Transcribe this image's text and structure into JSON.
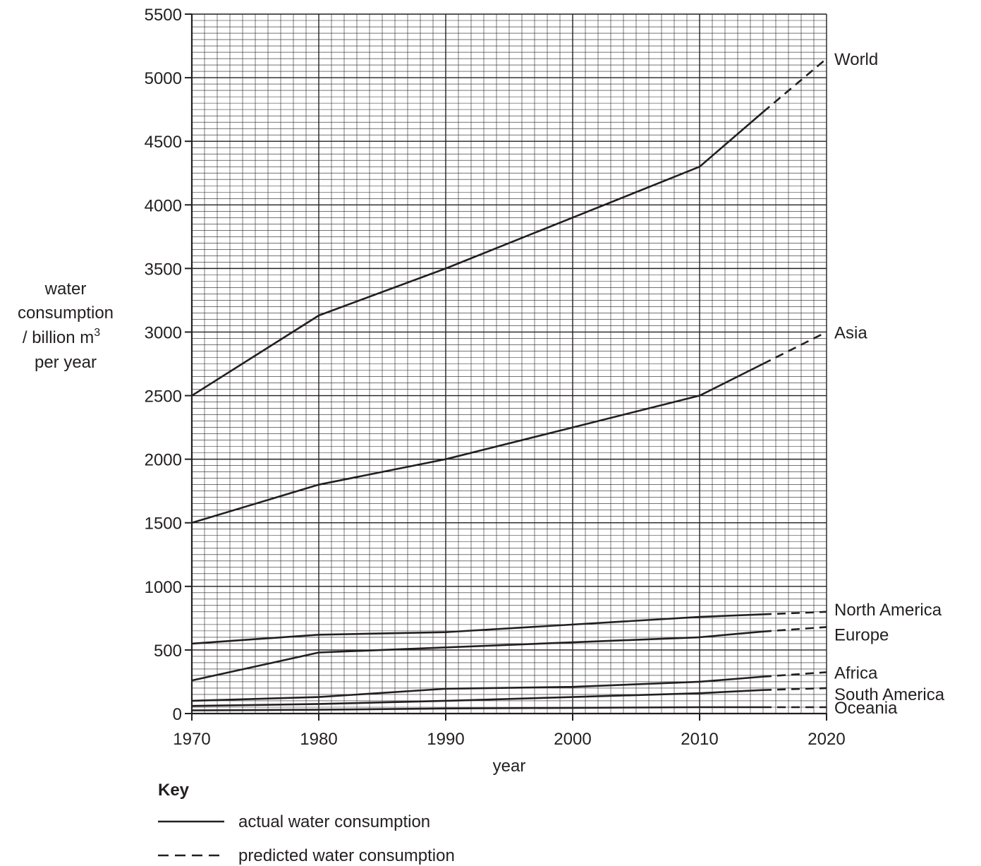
{
  "chart_data": {
    "type": "line",
    "xlabel": "year",
    "ylabel_lines": [
      "water",
      "consumption",
      "/ billion m",
      "per year"
    ],
    "ylabel_superscript": "3",
    "xlim": [
      1970,
      2020
    ],
    "ylim": [
      0,
      5500
    ],
    "x_ticks": [
      1970,
      1980,
      1990,
      2000,
      2010,
      2020
    ],
    "y_ticks": [
      0,
      500,
      1000,
      1500,
      2000,
      2500,
      3000,
      3500,
      4000,
      4500,
      5000,
      5500
    ],
    "grid": true,
    "series": [
      {
        "name": "World",
        "actual": [
          [
            1970,
            2500
          ],
          [
            1980,
            3130
          ],
          [
            1990,
            3500
          ],
          [
            2000,
            3900
          ],
          [
            2010,
            4300
          ],
          [
            2015,
            4730
          ]
        ],
        "predicted": [
          [
            2015,
            4730
          ],
          [
            2020,
            5150
          ]
        ]
      },
      {
        "name": "Asia",
        "actual": [
          [
            1970,
            1500
          ],
          [
            1980,
            1800
          ],
          [
            1990,
            2000
          ],
          [
            2000,
            2250
          ],
          [
            2010,
            2500
          ],
          [
            2015,
            2750
          ]
        ],
        "predicted": [
          [
            2015,
            2750
          ],
          [
            2020,
            3000
          ]
        ]
      },
      {
        "name": "North America",
        "actual": [
          [
            1970,
            550
          ],
          [
            1980,
            620
          ],
          [
            1990,
            640
          ],
          [
            2000,
            700
          ],
          [
            2010,
            760
          ],
          [
            2015,
            780
          ]
        ],
        "predicted": [
          [
            2015,
            780
          ],
          [
            2020,
            800
          ]
        ]
      },
      {
        "name": "Europe",
        "actual": [
          [
            1970,
            260
          ],
          [
            1980,
            480
          ],
          [
            1990,
            520
          ],
          [
            2000,
            560
          ],
          [
            2010,
            600
          ],
          [
            2015,
            645
          ]
        ],
        "predicted": [
          [
            2015,
            645
          ],
          [
            2020,
            680
          ]
        ]
      },
      {
        "name": "Africa",
        "actual": [
          [
            1970,
            100
          ],
          [
            1980,
            130
          ],
          [
            1990,
            195
          ],
          [
            2000,
            210
          ],
          [
            2010,
            250
          ],
          [
            2015,
            290
          ]
        ],
        "predicted": [
          [
            2015,
            290
          ],
          [
            2020,
            325
          ]
        ]
      },
      {
        "name": "South America",
        "actual": [
          [
            1970,
            60
          ],
          [
            1980,
            75
          ],
          [
            1990,
            100
          ],
          [
            2000,
            130
          ],
          [
            2010,
            160
          ],
          [
            2015,
            185
          ]
        ],
        "predicted": [
          [
            2015,
            185
          ],
          [
            2020,
            200
          ]
        ]
      },
      {
        "name": "Oceania",
        "actual": [
          [
            1970,
            25
          ],
          [
            1980,
            30
          ],
          [
            1990,
            40
          ],
          [
            2000,
            45
          ],
          [
            2010,
            50
          ],
          [
            2015,
            50
          ]
        ],
        "predicted": [
          [
            2015,
            50
          ],
          [
            2020,
            50
          ]
        ]
      }
    ],
    "key": {
      "title": "Key",
      "actual_label": "actual water consumption",
      "predicted_label": "predicted water consumption"
    },
    "colors": {
      "ink": "#231f20",
      "major_grid": "#231f20",
      "minor_grid": "#231f20"
    }
  }
}
